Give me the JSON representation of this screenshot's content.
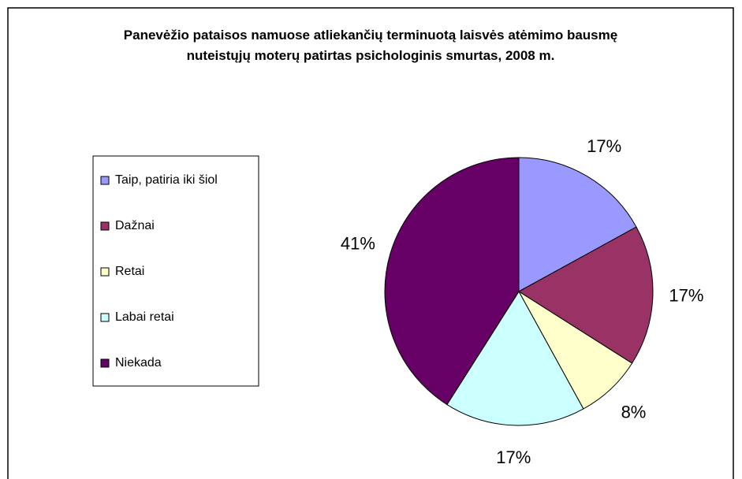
{
  "chart_data": {
    "type": "pie",
    "title": "Panevėžio pataisos namuose atliekančių terminuotą laisvės atėmimo bausmę nuteistųjų moterų patirtas psichologinis smurtas, 2008 m.",
    "categories": [
      "Taip, patiria iki šiol",
      "Dažnai",
      "Retai",
      "Labai retai",
      "Niekada"
    ],
    "values": [
      17,
      17,
      8,
      17,
      41
    ],
    "value_labels": [
      "17%",
      "17%",
      "8%",
      "17%",
      "41%"
    ],
    "colors": [
      "#9999ff",
      "#993366",
      "#ffffcc",
      "#ccffff",
      "#660066"
    ],
    "legend": "left"
  }
}
